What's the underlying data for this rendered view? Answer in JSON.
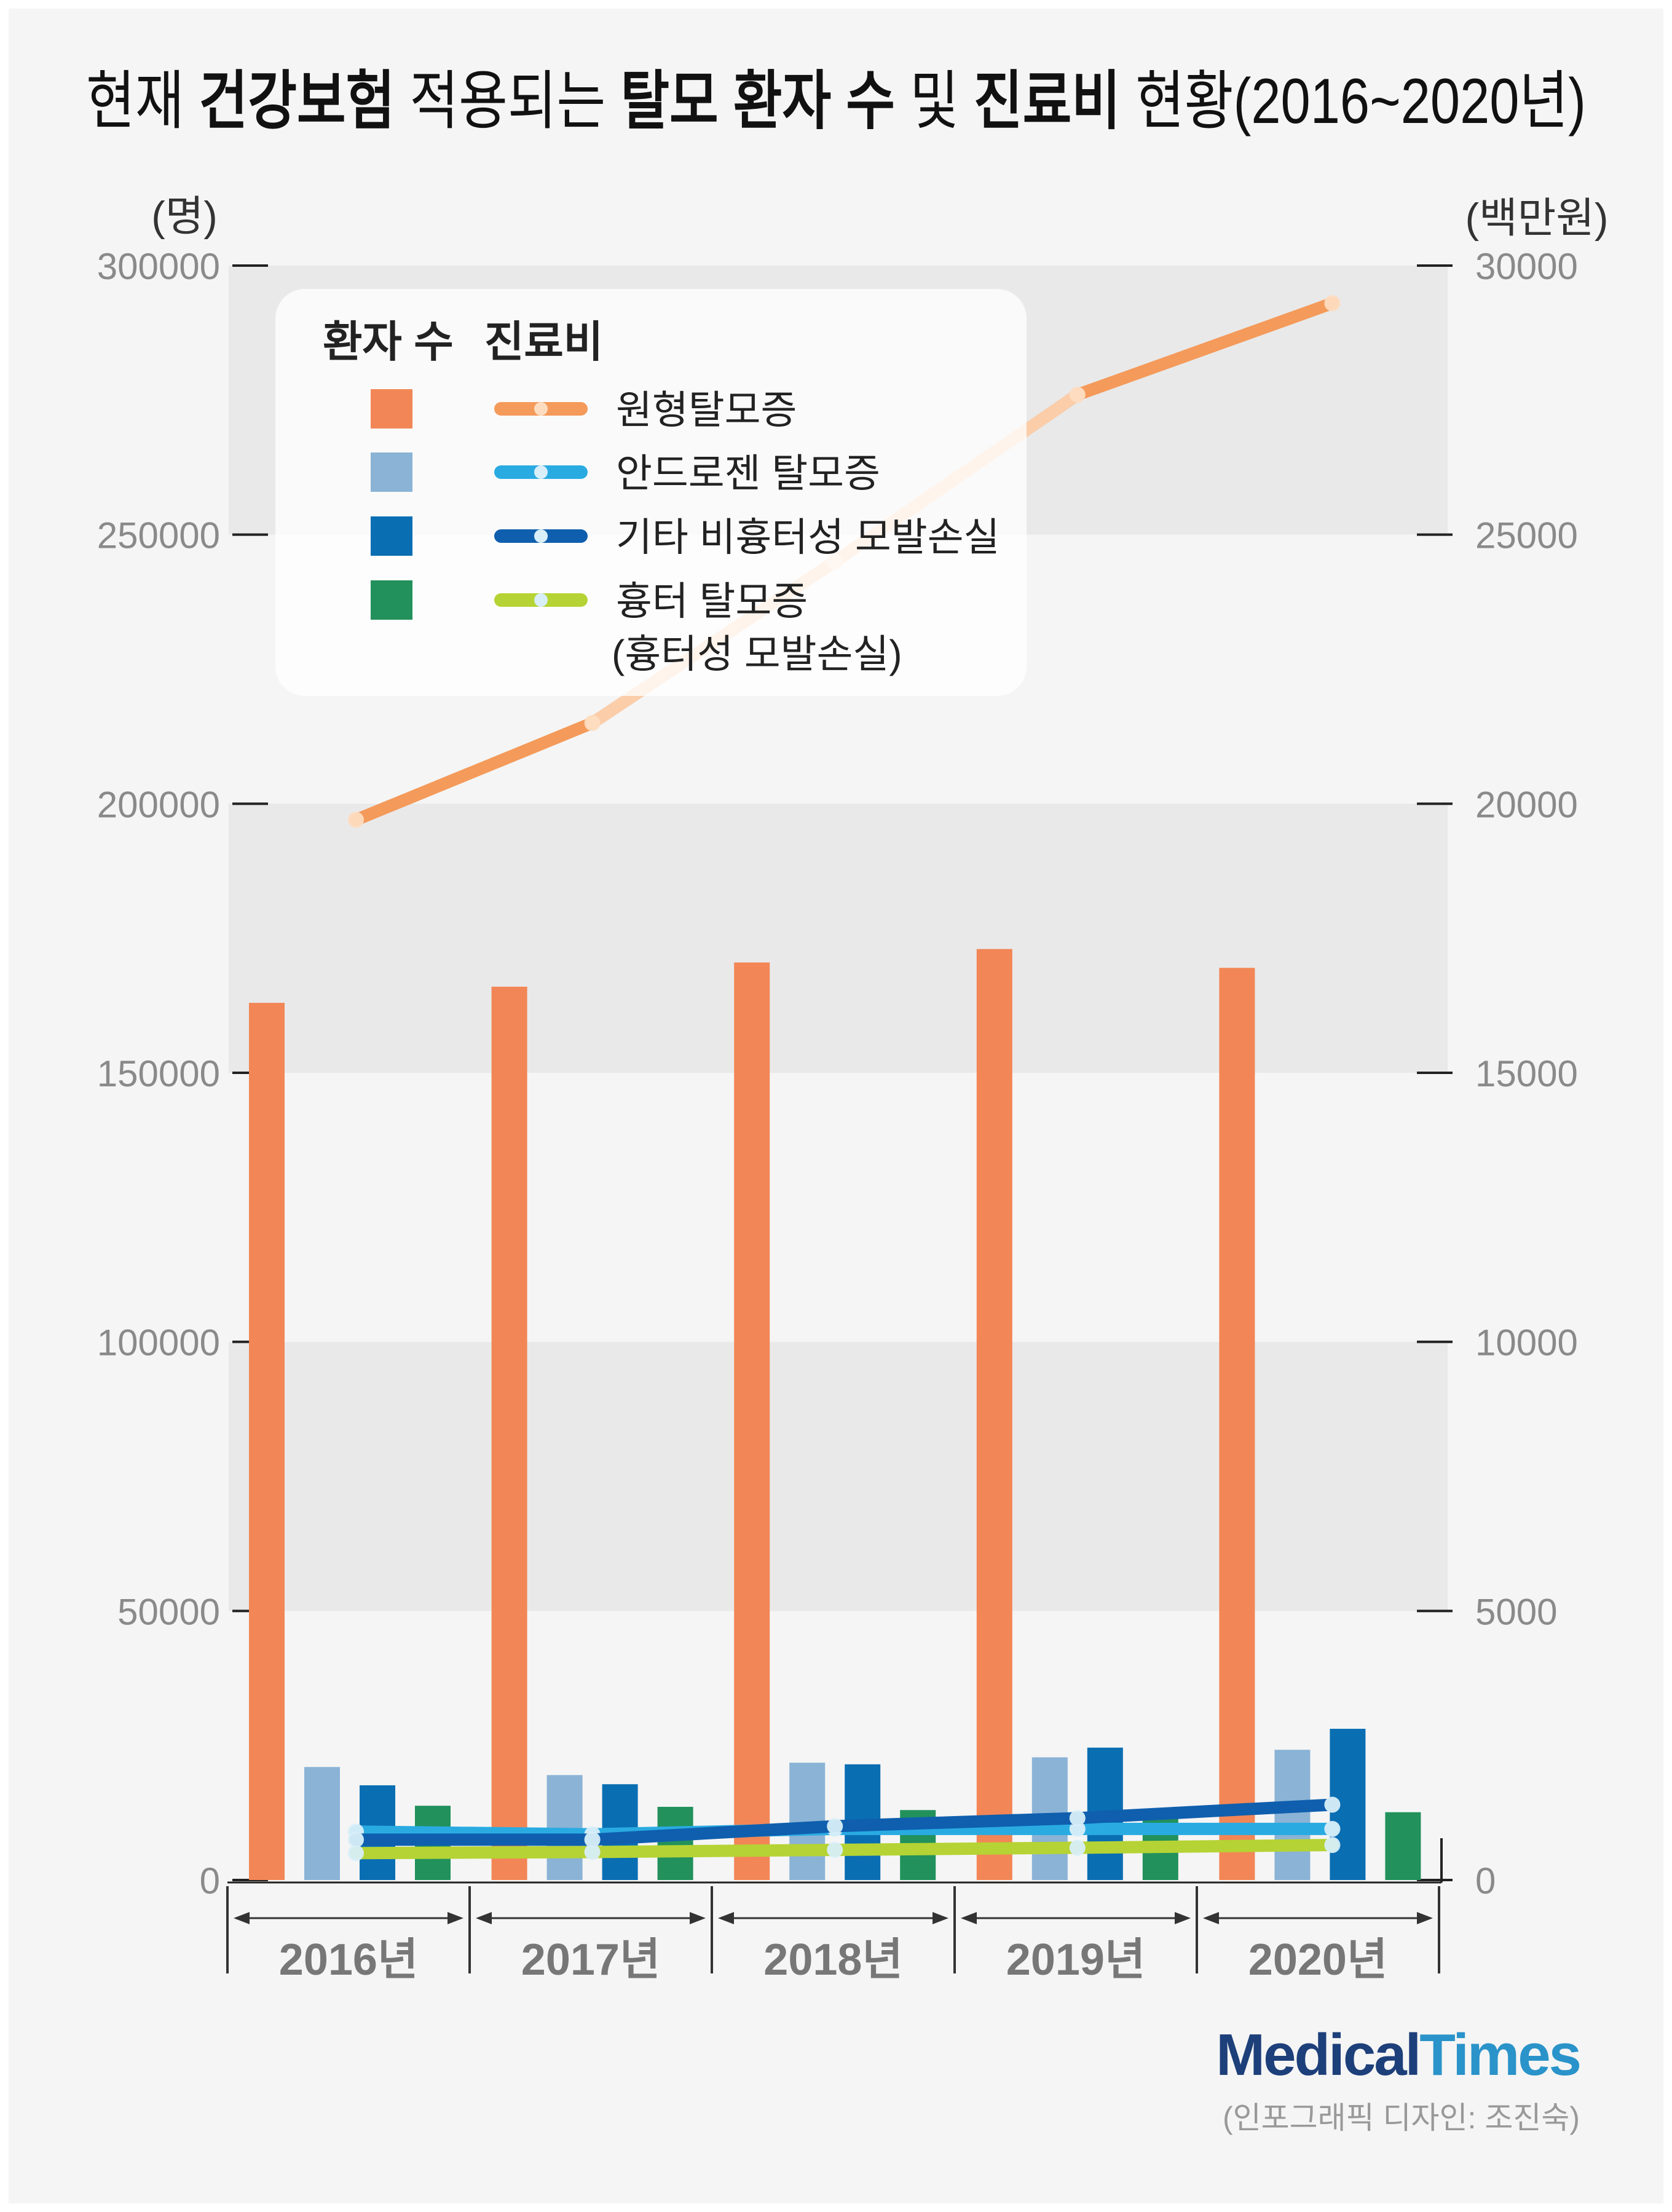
{
  "title": {
    "segments": [
      {
        "text": "현재 ",
        "bold": false
      },
      {
        "text": "건강보험",
        "bold": true
      },
      {
        "text": " 적용되는 ",
        "bold": false
      },
      {
        "text": "탈모 환자 수",
        "bold": true
      },
      {
        "text": " 및 ",
        "bold": false
      },
      {
        "text": "진료비",
        "bold": true
      },
      {
        "text": " 현황(2016~2020년)",
        "bold": false
      }
    ]
  },
  "colors": {
    "background": "#f5f5f5",
    "band": "#e9e9e9",
    "axis": "#222222",
    "tick_text": "#8a8a8a",
    "year_text": "#777777"
  },
  "legend": {
    "header_patients": "환자 수",
    "header_cost": "진료비"
  },
  "chart_data": {
    "type": "bar",
    "categories": [
      "2016년",
      "2017년",
      "2018년",
      "2019년",
      "2020년"
    ],
    "left_axis": {
      "label": "(명)",
      "ylim": [
        0,
        300000
      ],
      "ticks": [
        "300000",
        "250000",
        "200000",
        "150000",
        "100000",
        "50000",
        "0"
      ]
    },
    "right_axis": {
      "label": "(백만원)",
      "ylim": [
        0,
        30000
      ],
      "ticks": [
        "30000",
        "25000",
        "20000",
        "15000",
        "10000",
        "5000",
        "0"
      ]
    },
    "series": [
      {
        "name": "원형탈모증",
        "color": "#f28656",
        "line_color": "#f49a5a",
        "values": [
          163000,
          166000,
          170500,
          173000,
          169500
        ],
        "cost": [
          19700,
          21500,
          24500,
          27600,
          29300
        ]
      },
      {
        "name": "안드로젠 탈모증",
        "color": "#8ab3d6",
        "line_color": "#29abe2",
        "values": [
          21000,
          19500,
          21800,
          22800,
          24200
        ],
        "cost": [
          900,
          850,
          950,
          950,
          950
        ]
      },
      {
        "name": "기타 비흉터성 모발손실",
        "color": "#0a6eb3",
        "line_color": "#0f5fae",
        "values": [
          17600,
          17800,
          21500,
          24600,
          28100
        ],
        "cost": [
          750,
          750,
          1000,
          1150,
          1400
        ]
      },
      {
        "name": "흉터 탈모증",
        "sub_label": "(흉터성 모발손실)",
        "color": "#22915c",
        "line_color": "#b5d334",
        "values": [
          13800,
          13600,
          13000,
          12200,
          12600
        ],
        "cost": [
          500,
          520,
          560,
          600,
          650
        ]
      }
    ]
  },
  "brand": {
    "medical": "Medical",
    "times": "Times"
  },
  "credit": "(인포그래픽 디자인: 조진숙)"
}
